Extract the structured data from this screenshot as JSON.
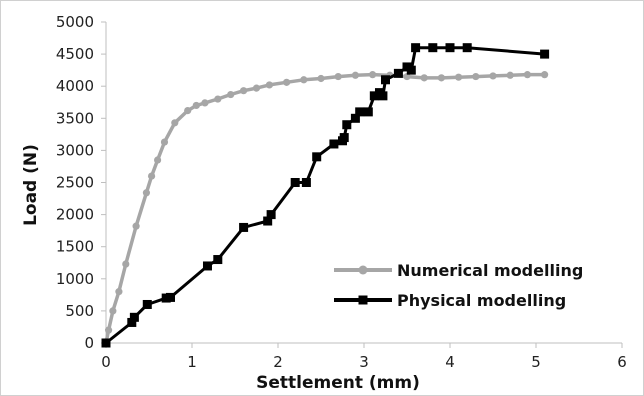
{
  "chart_data": {
    "type": "line",
    "xlabel": "Settlement (mm)",
    "ylabel": "Load (N)",
    "xlim": [
      0,
      6
    ],
    "ylim": [
      0,
      5000
    ],
    "xticks": [
      "0",
      "1",
      "2",
      "3",
      "4",
      "5",
      "6"
    ],
    "yticks": [
      "0",
      "500",
      "1000",
      "1500",
      "2000",
      "2500",
      "3000",
      "3500",
      "4000",
      "4500",
      "5000"
    ],
    "grid": false,
    "legend_position": "bottom-right",
    "series": [
      {
        "name": "Numerical modelling",
        "color": "#a6a6a6",
        "marker": "circle",
        "points": [
          [
            0,
            0
          ],
          [
            0.03,
            200
          ],
          [
            0.08,
            500
          ],
          [
            0.15,
            800
          ],
          [
            0.23,
            1230
          ],
          [
            0.35,
            1820
          ],
          [
            0.47,
            2340
          ],
          [
            0.53,
            2600
          ],
          [
            0.6,
            2850
          ],
          [
            0.68,
            3130
          ],
          [
            0.8,
            3430
          ],
          [
            0.95,
            3620
          ],
          [
            1.05,
            3700
          ],
          [
            1.15,
            3740
          ],
          [
            1.3,
            3800
          ],
          [
            1.45,
            3870
          ],
          [
            1.6,
            3930
          ],
          [
            1.75,
            3970
          ],
          [
            1.9,
            4020
          ],
          [
            2.1,
            4060
          ],
          [
            2.3,
            4100
          ],
          [
            2.5,
            4120
          ],
          [
            2.7,
            4150
          ],
          [
            2.9,
            4170
          ],
          [
            3.1,
            4180
          ],
          [
            3.3,
            4170
          ],
          [
            3.5,
            4150
          ],
          [
            3.7,
            4130
          ],
          [
            3.9,
            4130
          ],
          [
            4.1,
            4140
          ],
          [
            4.3,
            4150
          ],
          [
            4.5,
            4160
          ],
          [
            4.7,
            4170
          ],
          [
            4.9,
            4180
          ],
          [
            5.1,
            4180
          ]
        ]
      },
      {
        "name": "Physical modelling",
        "color": "#000000",
        "marker": "square",
        "points": [
          [
            0,
            0
          ],
          [
            0.3,
            320
          ],
          [
            0.33,
            400
          ],
          [
            0.48,
            600
          ],
          [
            0.7,
            700
          ],
          [
            0.75,
            710
          ],
          [
            1.18,
            1200
          ],
          [
            1.3,
            1300
          ],
          [
            1.6,
            1800
          ],
          [
            1.88,
            1900
          ],
          [
            1.92,
            2000
          ],
          [
            2.2,
            2500
          ],
          [
            2.33,
            2500
          ],
          [
            2.45,
            2900
          ],
          [
            2.65,
            3100
          ],
          [
            2.75,
            3150
          ],
          [
            2.77,
            3200
          ],
          [
            2.8,
            3400
          ],
          [
            2.9,
            3500
          ],
          [
            2.95,
            3600
          ],
          [
            3.05,
            3600
          ],
          [
            3.12,
            3850
          ],
          [
            3.18,
            3900
          ],
          [
            3.22,
            3850
          ],
          [
            3.25,
            4100
          ],
          [
            3.4,
            4200
          ],
          [
            3.5,
            4300
          ],
          [
            3.55,
            4250
          ],
          [
            3.6,
            4600
          ],
          [
            3.8,
            4600
          ],
          [
            4.0,
            4600
          ],
          [
            4.2,
            4600
          ],
          [
            5.1,
            4500
          ]
        ]
      }
    ]
  }
}
